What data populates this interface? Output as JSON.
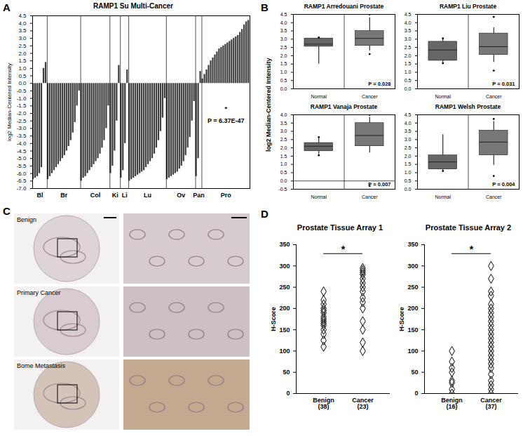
{
  "chart_data": [
    {
      "panel": "A",
      "type": "bar",
      "title": "RAMP1 Su Multi-Cancer",
      "ylabel": "log2 Median-Centered Intensity",
      "groups": [
        {
          "name": "Bl",
          "values": [
            -6.4,
            -6.3,
            -6.2,
            -6.0,
            -5.6,
            1.0,
            1.4
          ]
        },
        {
          "name": "Br",
          "values": [
            -6.4,
            -6.2,
            -6.0,
            -5.8,
            -5.6,
            -5.4,
            -5.2,
            -5.0,
            -4.8,
            -4.5,
            -4.2,
            -3.8,
            -3.3,
            -2.6,
            -1.5,
            -0.5
          ]
        },
        {
          "name": "Col",
          "values": [
            -6.5,
            -6.3,
            -6.2,
            -6.0,
            -5.8,
            -5.6,
            -5.4,
            -5.2,
            -5.0,
            -4.7,
            -4.3,
            -3.8,
            -3.0,
            -1.5
          ]
        },
        {
          "name": "Ki",
          "values": [
            -6.0,
            -5.5,
            -4.5,
            -2.5,
            1.2
          ]
        },
        {
          "name": "Li",
          "values": [
            -6.3,
            -5.8,
            -4.0,
            0.9
          ]
        },
        {
          "name": "Lu",
          "values": [
            -6.5,
            -6.4,
            -6.3,
            -6.2,
            -6.1,
            -6.0,
            -5.9,
            -5.8,
            -5.6,
            -5.4,
            -5.2,
            -5.0,
            -4.7,
            -4.3,
            -3.8,
            -3.2,
            -2.3,
            -1.0
          ]
        },
        {
          "name": "Ov",
          "values": [
            -6.4,
            -6.3,
            -6.2,
            -6.1,
            -6.0,
            -5.9,
            -5.7,
            -5.5,
            -5.2,
            -4.8,
            -4.3,
            -3.6,
            -2.5,
            -1.2
          ]
        },
        {
          "name": "Pan",
          "values": [
            -6.2,
            -5.0,
            0.8
          ]
        },
        {
          "name": "Pro",
          "values": [
            0.3,
            0.6,
            0.9,
            1.2,
            1.5,
            1.7,
            1.9,
            2.1,
            2.3,
            2.4,
            2.5,
            2.6,
            2.7,
            2.8,
            2.9,
            3.0,
            3.1,
            3.2,
            3.4,
            3.6,
            3.9,
            4.1,
            4.2
          ]
        }
      ],
      "color": "#3d3d3d",
      "ylim": [
        -7,
        4.5
      ],
      "yticks": [
        4.5,
        {
          "value": 4,
          "label": "4.0"
        },
        3.5,
        {
          "value": 3,
          "label": "3.0"
        },
        2.5,
        {
          "value": 2,
          "label": "2.0"
        },
        1.5,
        {
          "value": 1,
          "label": "1.0"
        },
        0.5,
        {
          "value": 0,
          "label": "0.0"
        },
        -0.5,
        {
          "value": -1,
          "label": "-1.0"
        },
        -1.5,
        {
          "value": -2,
          "label": "-2.0"
        },
        -2.5,
        {
          "value": -3,
          "label": "-3.0"
        },
        -3.5,
        {
          "value": -4,
          "label": "-4.0"
        },
        -4.5,
        {
          "value": -5,
          "label": "-5.0"
        },
        -5.5,
        {
          "value": -6,
          "label": "-6.0"
        },
        -6.5,
        {
          "value": -7,
          "label": "-7.0"
        }
      ],
      "annotations": [
        "*",
        "P = 6.37E-47"
      ]
    },
    {
      "panel": "B",
      "type": "box",
      "title": "RAMP1 Arredouani Prostate",
      "ylabel": "log2 Median-Centered Intensity",
      "categories": [
        "Normal",
        "Cancer"
      ],
      "boxes": [
        {
          "min": 1.5,
          "q1": 2.55,
          "median": 2.7,
          "q3": 3.05,
          "max": 3.1,
          "outliers": [
            3.1
          ]
        },
        {
          "min": 2.3,
          "q1": 2.6,
          "median": 3.05,
          "q3": 3.5,
          "max": 4.3,
          "outliers": [
            2.1,
            4.5
          ]
        }
      ],
      "colors": [
        "#666666",
        "#777777"
      ],
      "ylim": [
        0,
        4.5
      ],
      "yticks": [
        {
          "value": 0,
          "label": "0.0"
        },
        0.5,
        {
          "value": 1,
          "label": "1.0"
        },
        1.5,
        {
          "value": 2,
          "label": "2.0"
        },
        2.5,
        {
          "value": 3,
          "label": "3.0"
        },
        3.5,
        {
          "value": 4,
          "label": "4.0"
        },
        4.5
      ],
      "annotations": [
        "P = 0.028"
      ]
    },
    {
      "type": "box",
      "title": "RAMP1 Liu Prostate",
      "categories": [
        "Normal",
        "Cancer"
      ],
      "boxes": [
        {
          "min": 1.6,
          "q1": 1.7,
          "median": 2.35,
          "q3": 2.85,
          "max": 3.0,
          "outliers": [
            1.55,
            3.05
          ]
        },
        {
          "min": 1.6,
          "q1": 2.05,
          "median": 2.55,
          "q3": 3.35,
          "max": 3.7,
          "outliers": [
            1.1,
            4.35
          ]
        }
      ],
      "colors": [
        "#666666",
        "#777777"
      ],
      "ylim": [
        0,
        4.5
      ],
      "yticks": [
        {
          "value": 0,
          "label": "0.0"
        },
        0.5,
        {
          "value": 1,
          "label": "1.0"
        },
        1.5,
        {
          "value": 2,
          "label": "2.0"
        },
        2.5,
        {
          "value": 3,
          "label": "3.0"
        },
        3.5,
        {
          "value": 4,
          "label": "4.0"
        },
        4.5
      ],
      "annotations": [
        "P = 0.031"
      ]
    },
    {
      "type": "box",
      "title": "RAMP1 Vanaja Prostate",
      "categories": [
        "Normal",
        "Cancer"
      ],
      "boxes": [
        {
          "min": 1.6,
          "q1": 1.8,
          "median": 2.1,
          "q3": 2.3,
          "max": 2.6,
          "outliers": [
            1.55,
            2.65
          ]
        },
        {
          "min": 1.7,
          "q1": 2.1,
          "median": 2.75,
          "q3": 3.5,
          "max": 3.85,
          "outliers": [
            -0.3,
            4.0
          ]
        }
      ],
      "colors": [
        "#666666",
        "#777777"
      ],
      "ylim": [
        -0.5,
        4
      ],
      "yticks": [
        -0.5,
        {
          "value": 0,
          "label": "0.0"
        },
        0.5,
        {
          "value": 1,
          "label": "1.0"
        },
        1.5,
        {
          "value": 2,
          "label": "2.0"
        },
        2.5,
        {
          "value": 3,
          "label": "3.0"
        },
        3.5,
        {
          "value": 4,
          "label": "4.0"
        }
      ],
      "annotations": [
        "P = 0.007"
      ]
    },
    {
      "type": "box",
      "title": "RAMP1 Welsh Prostate",
      "categories": [
        "Normal",
        "Cancer"
      ],
      "boxes": [
        {
          "min": 1.1,
          "q1": 1.2,
          "median": 1.65,
          "q3": 2.05,
          "max": 3.3,
          "outliers": [
            1.1
          ]
        },
        {
          "min": 1.45,
          "q1": 2.05,
          "median": 2.85,
          "q3": 3.55,
          "max": 4.1,
          "outliers": [
            0.8,
            4.25
          ]
        }
      ],
      "colors": [
        "#666666",
        "#777777"
      ],
      "ylim": [
        0,
        4.5
      ],
      "yticks": [
        {
          "value": 0,
          "label": "0.0"
        },
        0.5,
        {
          "value": 1,
          "label": "1.0"
        },
        1.5,
        {
          "value": 2,
          "label": "2.0"
        },
        2.5,
        {
          "value": 3,
          "label": "3.0"
        },
        3.5,
        {
          "value": 4,
          "label": "4.0"
        },
        4.5
      ],
      "annotations": [
        "P = 0.004"
      ]
    },
    {
      "panel": "D",
      "type": "scatter",
      "title": "Prostate Tissue Array 1",
      "ylabel": "H-Score",
      "categories": [
        "Benign\n(38)",
        "Cancer\n(23)"
      ],
      "values": [
        [
          110,
          125,
          140,
          150,
          160,
          165,
          170,
          175,
          180,
          190,
          195,
          200,
          210,
          220,
          240
        ],
        [
          100,
          120,
          150,
          170,
          200,
          215,
          225,
          240,
          250,
          260,
          270,
          280,
          285,
          290,
          295
        ]
      ],
      "marker": "diamond",
      "color": "#000000",
      "ylim": [
        0,
        350
      ],
      "yticks": [
        0,
        50,
        100,
        150,
        200,
        250,
        300,
        350
      ],
      "annotations": [
        "*"
      ]
    },
    {
      "type": "scatter",
      "title": "Prostate Tissue Array 2",
      "ylabel": "H-Score",
      "categories": [
        "Benign\n(16)",
        "Cancer\n(37)"
      ],
      "values": [
        [
          0,
          10,
          25,
          30,
          50,
          60,
          75,
          100
        ],
        [
          0,
          10,
          20,
          30,
          45,
          60,
          70,
          80,
          90,
          100,
          110,
          120,
          130,
          140,
          150,
          160,
          170,
          180,
          190,
          200,
          210,
          230,
          240,
          270,
          300
        ]
      ],
      "marker": "diamond",
      "color": "#000000",
      "ylim": [
        0,
        350
      ],
      "yticks": [
        0,
        50,
        100,
        150,
        200,
        250,
        300,
        350
      ],
      "annotations": [
        "*"
      ]
    }
  ],
  "images": {
    "panel": "C",
    "rows": [
      "Benign",
      "Primary Cancer",
      "Bome Metastasis"
    ]
  }
}
